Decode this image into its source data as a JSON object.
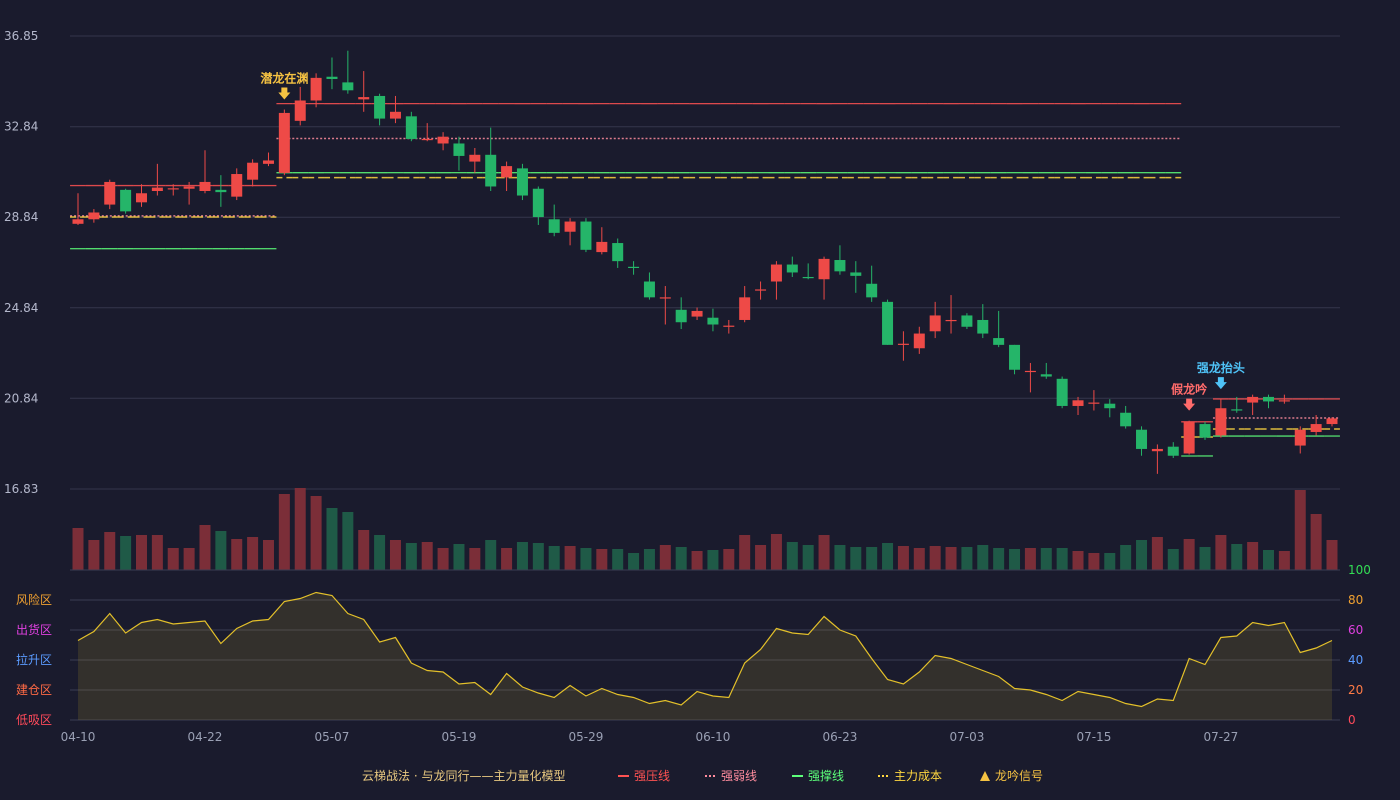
{
  "chart_data": {
    "type": "candlestick",
    "categories": [
      "04-10",
      null,
      null,
      null,
      null,
      null,
      null,
      null,
      "04-22",
      null,
      null,
      null,
      null,
      null,
      null,
      null,
      "05-07",
      null,
      null,
      null,
      null,
      null,
      null,
      null,
      "05-19",
      null,
      null,
      null,
      null,
      null,
      null,
      null,
      "05-29",
      null,
      null,
      null,
      null,
      null,
      null,
      null,
      "06-10",
      null,
      null,
      null,
      null,
      null,
      null,
      null,
      "06-23",
      null,
      null,
      null,
      null,
      null,
      null,
      null,
      "07-03",
      null,
      null,
      null,
      null,
      null,
      null,
      null,
      "07-15",
      null,
      null,
      null,
      null,
      null,
      null,
      null,
      "07-27",
      null,
      null,
      null,
      null,
      null,
      null,
      null
    ],
    "open": [
      28.55,
      28.75,
      29.4,
      30.05,
      29.5,
      30.0,
      30.1,
      30.1,
      30.0,
      30.05,
      29.75,
      30.5,
      31.2,
      30.8,
      33.1,
      34.0,
      35.05,
      34.8,
      34.05,
      34.2,
      33.2,
      33.3,
      32.25,
      32.1,
      32.1,
      31.3,
      31.6,
      30.6,
      31.0,
      30.1,
      28.75,
      28.2,
      28.65,
      27.3,
      27.7,
      26.65,
      26.0,
      25.25,
      24.75,
      24.45,
      24.4,
      24.0,
      24.3,
      25.6,
      26.0,
      26.75,
      26.2,
      26.1,
      26.95,
      26.4,
      25.9,
      25.1,
      23.2,
      23.05,
      23.8,
      24.25,
      24.5,
      24.3,
      23.5,
      23.2,
      22.0,
      21.9,
      21.7,
      20.5,
      20.6,
      20.6,
      20.2,
      19.45,
      18.5,
      18.7,
      18.4,
      19.7,
      19.2,
      20.35,
      20.65,
      20.9,
      20.7,
      18.75,
      19.35,
      19.7
    ],
    "high": [
      29.9,
      29.2,
      30.5,
      30.1,
      30.3,
      31.2,
      30.3,
      30.4,
      31.8,
      30.7,
      31.0,
      31.4,
      31.7,
      33.6,
      34.6,
      35.2,
      35.9,
      36.2,
      35.3,
      34.3,
      34.2,
      33.5,
      33.0,
      32.6,
      32.4,
      31.9,
      32.8,
      31.3,
      31.2,
      30.2,
      29.4,
      28.8,
      28.8,
      28.4,
      27.9,
      26.9,
      26.4,
      25.8,
      25.3,
      24.85,
      24.8,
      24.3,
      25.8,
      26.0,
      26.9,
      27.1,
      26.8,
      27.1,
      27.6,
      26.9,
      26.7,
      25.2,
      23.8,
      24.0,
      25.1,
      25.4,
      24.6,
      25.0,
      24.7,
      23.2,
      22.4,
      22.4,
      21.8,
      20.9,
      21.2,
      20.8,
      20.5,
      19.6,
      18.8,
      18.9,
      19.85,
      19.8,
      20.8,
      20.9,
      21.0,
      21.0,
      21.0,
      19.6,
      20.1,
      20.0
    ],
    "low": [
      28.5,
      28.6,
      29.2,
      29.0,
      29.3,
      29.8,
      29.8,
      29.4,
      29.9,
      29.3,
      29.6,
      30.2,
      31.1,
      30.7,
      32.9,
      33.7,
      34.5,
      34.3,
      33.5,
      32.9,
      33.0,
      32.2,
      32.2,
      31.8,
      30.9,
      30.8,
      30.0,
      30.0,
      29.6,
      28.5,
      28.0,
      27.6,
      27.3,
      27.2,
      26.6,
      26.3,
      25.2,
      24.1,
      23.9,
      24.3,
      23.8,
      23.7,
      24.2,
      25.2,
      25.2,
      26.2,
      26.1,
      25.2,
      26.3,
      25.5,
      25.1,
      23.2,
      22.5,
      22.8,
      23.5,
      23.7,
      23.9,
      23.5,
      23.1,
      21.9,
      21.1,
      21.7,
      20.4,
      20.1,
      20.3,
      20.0,
      19.5,
      18.3,
      17.5,
      18.2,
      18.35,
      19.0,
      19.1,
      20.2,
      20.1,
      20.4,
      20.6,
      18.4,
      19.2,
      19.6
    ],
    "close": [
      28.75,
      29.05,
      30.4,
      29.1,
      29.9,
      30.15,
      30.12,
      30.2,
      30.4,
      29.95,
      30.75,
      31.25,
      31.35,
      33.45,
      34.0,
      35.0,
      34.95,
      34.45,
      34.15,
      33.2,
      33.5,
      32.3,
      32.3,
      32.4,
      31.55,
      31.6,
      30.2,
      31.1,
      29.8,
      28.85,
      28.15,
      28.65,
      27.4,
      27.75,
      26.9,
      26.6,
      25.3,
      25.3,
      24.2,
      24.7,
      24.1,
      24.05,
      25.3,
      25.65,
      26.75,
      26.4,
      26.17,
      27.0,
      26.45,
      26.25,
      25.3,
      23.2,
      23.25,
      23.7,
      24.5,
      24.3,
      24.0,
      23.7,
      23.2,
      22.1,
      22.05,
      21.8,
      20.5,
      20.75,
      20.65,
      20.4,
      19.6,
      18.6,
      18.6,
      18.3,
      19.8,
      19.1,
      20.4,
      20.3,
      20.9,
      20.7,
      20.75,
      19.45,
      19.7,
      19.95
    ],
    "up_color": "#ee4a47",
    "down_color": "#25b569",
    "volume_up_color": "#7b2e38",
    "volume_down_color": "#1f5a47",
    "ylim": [
      16.83,
      36.85
    ],
    "yticks": [
      16.83,
      20.84,
      24.84,
      28.84,
      32.84,
      36.85
    ],
    "volume": [
      42,
      30,
      38,
      34,
      35,
      35,
      22,
      22,
      45,
      39,
      31,
      33,
      30,
      76,
      82,
      74,
      62,
      58,
      40,
      35,
      30,
      27,
      28,
      22,
      26,
      22,
      30,
      22,
      28,
      27,
      24,
      24,
      22,
      21,
      21,
      17,
      21,
      25,
      23,
      19,
      20,
      21,
      35,
      25,
      36,
      28,
      25,
      35,
      25,
      23,
      23,
      27,
      24,
      22,
      24,
      23,
      23,
      25,
      22,
      21,
      22,
      22,
      22,
      19,
      17,
      17,
      25,
      30,
      33,
      21,
      31,
      23,
      35,
      26,
      28,
      20,
      19,
      80,
      56,
      30
    ],
    "series": [
      {
        "name": "强压线",
        "color": "#ff5252",
        "dash": "solid",
        "values": [
          30.24,
          30.24,
          30.24,
          30.24,
          30.24,
          30.24,
          30.24,
          30.24,
          30.24,
          30.24,
          30.24,
          30.24,
          30.24,
          33.86,
          33.86,
          33.86,
          33.86,
          33.86,
          33.86,
          33.86,
          33.86,
          33.86,
          33.86,
          33.86,
          33.86,
          33.86,
          33.86,
          33.86,
          33.86,
          33.86,
          33.86,
          33.86,
          33.86,
          33.86,
          33.86,
          33.86,
          33.86,
          33.86,
          33.86,
          33.86,
          33.86,
          33.86,
          33.86,
          33.86,
          33.86,
          33.86,
          33.86,
          33.86,
          33.86,
          33.86,
          33.86,
          33.86,
          33.86,
          33.86,
          33.86,
          33.86,
          33.86,
          33.86,
          33.86,
          33.86,
          33.86,
          33.86,
          33.86,
          33.86,
          33.86,
          33.86,
          33.86,
          33.86,
          33.86,
          33.86,
          19.8,
          19.8,
          20.81,
          20.81,
          20.81,
          20.81,
          20.81,
          20.81,
          20.81,
          20.81
        ]
      },
      {
        "name": "强弱线",
        "color": "#ff8c9e",
        "dash": "dotted",
        "values": [
          28.9,
          28.9,
          28.9,
          28.9,
          28.9,
          28.9,
          28.9,
          28.9,
          28.9,
          28.9,
          28.9,
          28.9,
          28.9,
          32.32,
          32.32,
          32.32,
          32.32,
          32.32,
          32.32,
          32.32,
          32.32,
          32.32,
          32.32,
          32.32,
          32.32,
          32.32,
          32.32,
          32.32,
          32.32,
          32.32,
          32.32,
          32.32,
          32.32,
          32.32,
          32.32,
          32.32,
          32.32,
          32.32,
          32.32,
          32.32,
          32.32,
          32.32,
          32.32,
          32.32,
          32.32,
          32.32,
          32.32,
          32.32,
          32.32,
          32.32,
          32.32,
          32.32,
          32.32,
          32.32,
          32.32,
          32.32,
          32.32,
          32.32,
          32.32,
          32.32,
          32.32,
          32.32,
          32.32,
          32.32,
          32.32,
          32.32,
          32.32,
          32.32,
          32.32,
          32.32,
          null,
          null,
          19.97,
          19.97,
          19.97,
          19.97,
          19.97,
          19.97,
          19.97,
          19.97
        ]
      },
      {
        "name": "强撑线",
        "color": "#5cff7a",
        "dash": "solid",
        "values": [
          27.45,
          27.45,
          27.45,
          27.45,
          27.45,
          27.45,
          27.45,
          27.45,
          27.45,
          27.45,
          27.45,
          27.45,
          27.45,
          30.81,
          30.81,
          30.81,
          30.81,
          30.81,
          30.81,
          30.81,
          30.81,
          30.81,
          30.81,
          30.81,
          30.81,
          30.81,
          30.81,
          30.81,
          30.81,
          30.81,
          30.81,
          30.81,
          30.81,
          30.81,
          30.81,
          30.81,
          30.81,
          30.81,
          30.81,
          30.81,
          30.81,
          30.81,
          30.81,
          30.81,
          30.81,
          30.81,
          30.81,
          30.81,
          30.81,
          30.81,
          30.81,
          30.81,
          30.81,
          30.81,
          30.81,
          30.81,
          30.81,
          30.81,
          30.81,
          30.81,
          30.81,
          30.81,
          30.81,
          30.81,
          30.81,
          30.81,
          30.81,
          30.81,
          30.81,
          30.81,
          18.29,
          18.29,
          19.17,
          19.17,
          19.17,
          19.17,
          19.17,
          19.17,
          19.17,
          19.17
        ]
      },
      {
        "name": "主力成本",
        "color": "#ffd740",
        "dash": "dashed",
        "values": [
          28.85,
          28.85,
          28.85,
          28.85,
          28.85,
          28.85,
          28.85,
          28.85,
          28.85,
          28.85,
          28.85,
          28.85,
          28.85,
          30.59,
          30.59,
          30.59,
          30.59,
          30.59,
          30.59,
          30.59,
          30.59,
          30.59,
          30.59,
          30.59,
          30.59,
          30.59,
          30.59,
          30.59,
          30.59,
          30.59,
          30.59,
          30.59,
          30.59,
          30.59,
          30.59,
          30.59,
          30.59,
          30.59,
          30.59,
          30.59,
          30.59,
          30.59,
          30.59,
          30.59,
          30.59,
          30.59,
          30.59,
          30.59,
          30.59,
          30.59,
          30.59,
          30.59,
          30.59,
          30.59,
          30.59,
          30.59,
          30.59,
          30.59,
          30.59,
          30.59,
          30.59,
          30.59,
          30.59,
          30.59,
          30.59,
          30.59,
          30.59,
          30.59,
          30.59,
          30.59,
          19.13,
          19.13,
          19.48,
          19.48,
          19.48,
          19.48,
          19.48,
          19.48,
          19.48,
          19.48
        ]
      }
    ],
    "signals": [
      null,
      null,
      null,
      null,
      null,
      null,
      null,
      null,
      null,
      null,
      null,
      null,
      null,
      {
        "text": "潜龙在渊",
        "color": "#f5c242"
      },
      null,
      null,
      null,
      null,
      null,
      null,
      null,
      null,
      null,
      null,
      null,
      null,
      null,
      null,
      null,
      null,
      null,
      null,
      null,
      null,
      null,
      null,
      null,
      null,
      null,
      null,
      null,
      null,
      null,
      null,
      null,
      null,
      null,
      null,
      null,
      null,
      null,
      null,
      null,
      null,
      null,
      null,
      null,
      null,
      null,
      null,
      null,
      null,
      null,
      null,
      null,
      null,
      null,
      null,
      null,
      null,
      {
        "text": "假龙吟",
        "color": "#ff6b6b"
      },
      null,
      {
        "text": "强龙抬头",
        "color": "#4fc3f7"
      },
      null,
      null,
      null,
      null,
      null,
      null,
      null
    ],
    "signal_legend": {
      "name": "龙吟信号",
      "color": "#f5c242"
    },
    "legend_title": "云梯战法 · 与龙同行——主力量化模型",
    "indicator": {
      "color": "#e3c02a",
      "ylim": [
        0,
        100
      ],
      "yticks": [
        0,
        20,
        40,
        60,
        80,
        100
      ],
      "ytick_colors": [
        "#ff4a5a",
        "#ff7a45",
        "#5b9bff",
        "#e040e0",
        "#f0a030",
        "#33dd55"
      ],
      "zones": [
        {
          "label": "风险区",
          "value": 80,
          "color": "#f0a030"
        },
        {
          "label": "出货区",
          "value": 60,
          "color": "#e040e0"
        },
        {
          "label": "拉升区",
          "value": 40,
          "color": "#5b9bff"
        },
        {
          "label": "建仓区",
          "value": 20,
          "color": "#ff6a45"
        },
        {
          "label": "低吸区",
          "value": 0,
          "color": "#ff4a5a"
        }
      ],
      "values": [
        53,
        59,
        71,
        58,
        65,
        67,
        64,
        65,
        66,
        51,
        61,
        66,
        67,
        79,
        81,
        85,
        83,
        71,
        67,
        52,
        55,
        38,
        33,
        32,
        24,
        25,
        17,
        31,
        22,
        18,
        15,
        23,
        16,
        21,
        17,
        15,
        11,
        13,
        10,
        19,
        16,
        15,
        38,
        47,
        61,
        58,
        57,
        69,
        60,
        56,
        41,
        27,
        24,
        32,
        43,
        41,
        37,
        33,
        29,
        21,
        20,
        17,
        13,
        19,
        17,
        15,
        11,
        9,
        14,
        13,
        41,
        37,
        55,
        56,
        65,
        63,
        65,
        45,
        48,
        53
      ]
    }
  }
}
